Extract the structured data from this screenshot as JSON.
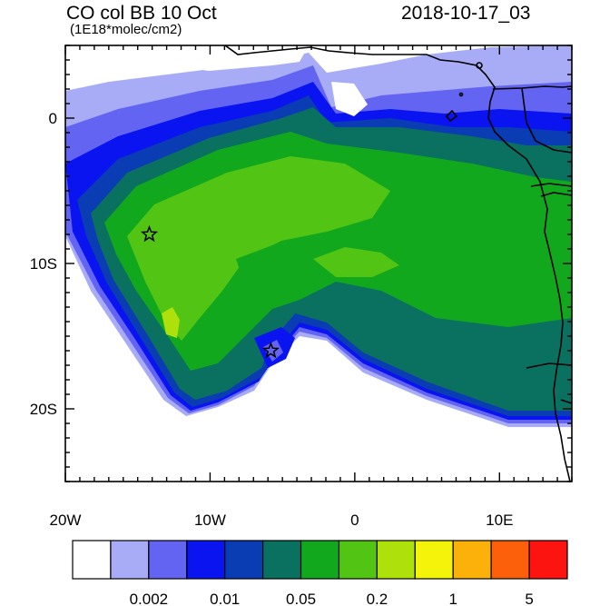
{
  "header": {
    "title": "CO col BB 10 Oct",
    "subtitle": "(1E18*molec/cm2)",
    "datetime": "2018-10-17_03"
  },
  "axes": {
    "x_ticks": [
      "20W",
      "10W",
      "0",
      "10E"
    ],
    "y_ticks": [
      "0",
      "10S",
      "20S"
    ]
  },
  "colorbar": {
    "colors": [
      "#ffffff",
      "#a8acf6",
      "#6464f2",
      "#0a14f0",
      "#0a3cb4",
      "#0a7060",
      "#12a81e",
      "#52c414",
      "#aee00c",
      "#f4f40a",
      "#fcb00a",
      "#fc600a",
      "#fc1410"
    ],
    "labels": [
      "0.002",
      "0.01",
      "0.05",
      "0.2",
      "1",
      "5"
    ]
  },
  "markers": [
    {
      "name": "star-marker-west",
      "lon": -14.2,
      "lat": -8.0
    },
    {
      "name": "star-marker-south",
      "lon": -5.8,
      "lat": -16.0
    }
  ],
  "map": {
    "lon_range": [
      -20,
      15
    ],
    "lat_range": [
      -25,
      5
    ]
  }
}
